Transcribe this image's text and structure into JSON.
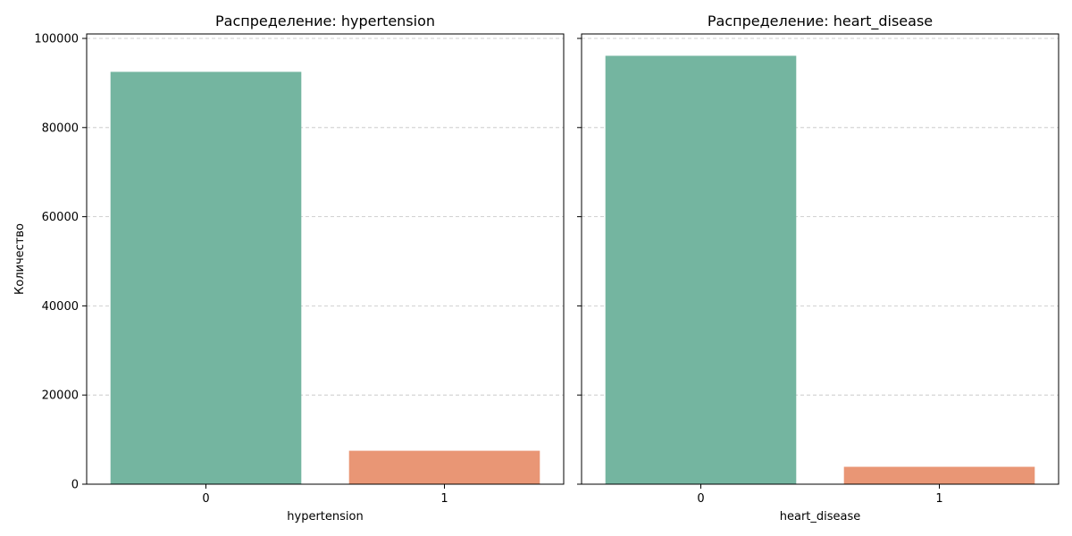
{
  "chart_data": [
    {
      "type": "bar",
      "title": "Распределение: hypertension",
      "xlabel": "hypertension",
      "ylabel": "Количество",
      "categories": [
        "0",
        "1"
      ],
      "values": [
        92500,
        7500
      ],
      "colors": [
        "#74b5a0",
        "#e99675"
      ],
      "ylim": [
        0,
        101000
      ],
      "yticks": [
        0,
        20000,
        40000,
        60000,
        80000,
        100000
      ],
      "grid": "y-dashed"
    },
    {
      "type": "bar",
      "title": "Распределение: heart_disease",
      "xlabel": "heart_disease",
      "ylabel": "",
      "categories": [
        "0",
        "1"
      ],
      "values": [
        96100,
        3900
      ],
      "colors": [
        "#74b5a0",
        "#e99675"
      ],
      "ylim": [
        0,
        101000
      ],
      "yticks": [
        0,
        20000,
        40000,
        60000,
        80000,
        100000
      ],
      "grid": "y-dashed"
    }
  ]
}
